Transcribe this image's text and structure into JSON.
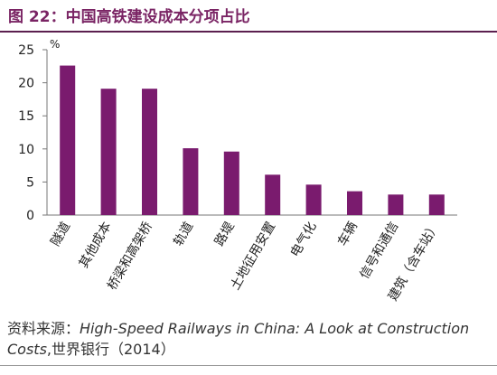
{
  "figure": {
    "title": "图 22：中国高铁建设成本分项占比"
  },
  "chart_data": {
    "type": "bar",
    "unit_label": "%",
    "categories": [
      "隧道",
      "其他成本",
      "桥梁和高架桥",
      "轨道",
      "路堤",
      "土地征用安置",
      "电气化",
      "车辆",
      "信号和通信",
      "建筑（含车站）"
    ],
    "values": [
      22.6,
      19.1,
      19.1,
      10.1,
      9.6,
      6.1,
      4.6,
      3.6,
      3.1,
      3.1
    ],
    "ylim": [
      0,
      25
    ],
    "yticks": [
      "0",
      "5",
      "10",
      "15",
      "20",
      "25"
    ],
    "bar_color": "#7a1b6e",
    "grid": false
  },
  "source": {
    "prefix": "资料来源：",
    "title_italic": "High-Speed Railways in China: A Look at Construction Costs",
    "suffix": ",世界银行（2014）"
  }
}
